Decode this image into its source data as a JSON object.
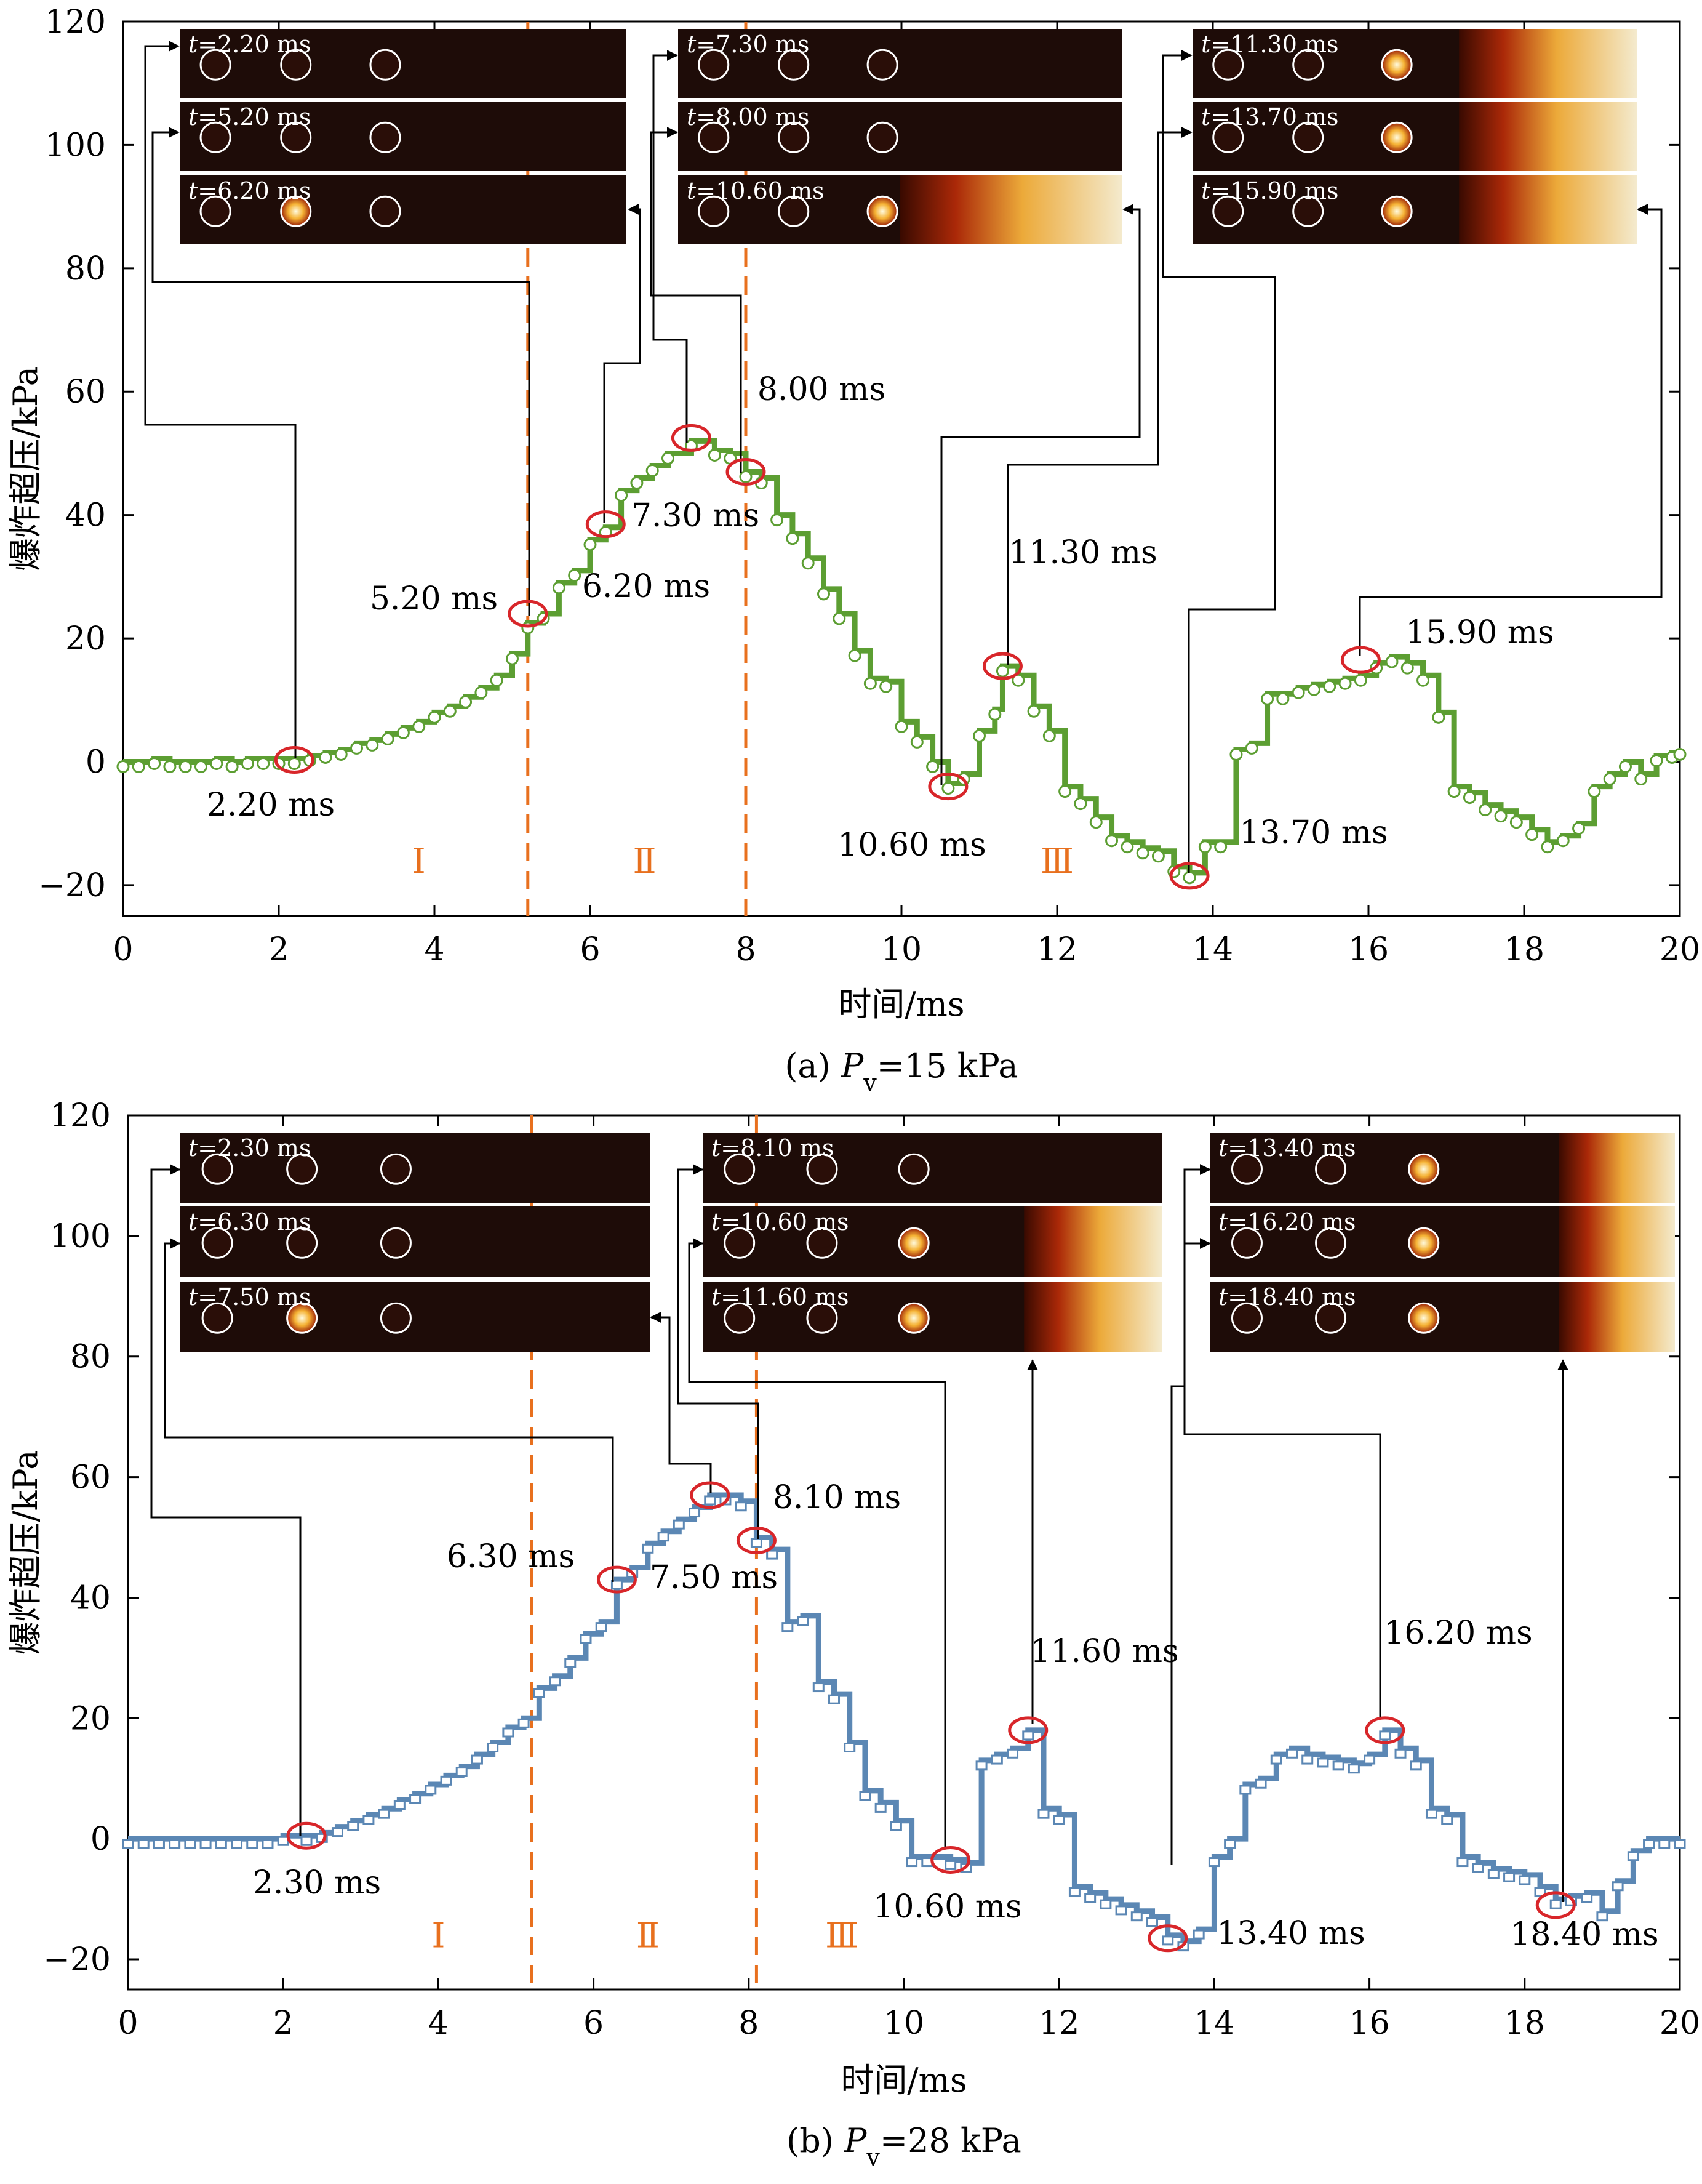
{
  "charts": [
    {
      "id": "a",
      "caption_prefix": "(a) ",
      "caption_var": "P",
      "caption_sub": "v",
      "caption_value": "=15 kPa",
      "ylabel": "爆炸超压/kPa",
      "xlabel": "时间/ms",
      "series_color": "#5c9e32",
      "marker": "circle"
    },
    {
      "id": "b",
      "caption_prefix": "(b) ",
      "caption_var": "P",
      "caption_sub": "v",
      "caption_value": "=28 kPa",
      "ylabel": "爆炸超压/kPa",
      "xlabel": "时间/ms",
      "series_color": "#5b87b4",
      "marker": "square"
    }
  ],
  "chart_data": [
    {
      "type": "line",
      "title": "(a) Pv=15 kPa",
      "xlabel": "时间/ms",
      "ylabel": "爆炸超压/kPa",
      "xlim": [
        0,
        20
      ],
      "ylim": [
        -25,
        120
      ],
      "xticks": [
        0,
        2,
        4,
        6,
        8,
        10,
        12,
        14,
        16,
        18,
        20
      ],
      "yticks": [
        -20,
        0,
        20,
        40,
        60,
        80,
        100,
        120
      ],
      "ytick_labels": [
        "−20",
        "0",
        "20",
        "40",
        "60",
        "80",
        "100",
        "120"
      ],
      "phase_lines": [
        5.2,
        8.0
      ],
      "phase_labels": [
        {
          "text": "Ⅰ",
          "x": 3.8
        },
        {
          "text": "Ⅱ",
          "x": 6.7
        },
        {
          "text": "Ⅲ",
          "x": 12.0
        }
      ],
      "x": [
        0,
        0.2,
        0.4,
        0.6,
        0.8,
        1.0,
        1.2,
        1.4,
        1.6,
        1.8,
        2.0,
        2.2,
        2.4,
        2.6,
        2.8,
        3.0,
        3.2,
        3.4,
        3.6,
        3.8,
        4.0,
        4.2,
        4.4,
        4.6,
        4.8,
        5.0,
        5.2,
        5.4,
        5.6,
        5.8,
        6.0,
        6.2,
        6.4,
        6.6,
        6.8,
        7.0,
        7.3,
        7.6,
        7.8,
        8.0,
        8.2,
        8.4,
        8.6,
        8.8,
        9.0,
        9.2,
        9.4,
        9.6,
        9.8,
        10.0,
        10.2,
        10.4,
        10.6,
        10.8,
        11.0,
        11.2,
        11.3,
        11.5,
        11.7,
        11.9,
        12.1,
        12.3,
        12.5,
        12.7,
        12.9,
        13.1,
        13.3,
        13.5,
        13.7,
        13.9,
        14.1,
        14.3,
        14.5,
        14.7,
        14.9,
        15.1,
        15.3,
        15.5,
        15.7,
        15.9,
        16.1,
        16.3,
        16.5,
        16.7,
        16.9,
        17.1,
        17.3,
        17.5,
        17.7,
        17.9,
        18.1,
        18.3,
        18.5,
        18.7,
        18.9,
        19.1,
        19.3,
        19.5,
        19.7,
        19.9,
        20.0
      ],
      "series": [
        {
          "name": "Pv=15 kPa",
          "values": [
            0,
            0,
            0.5,
            0,
            0,
            0,
            0.5,
            0,
            0.5,
            0.5,
            0.5,
            0.5,
            1,
            1.5,
            2,
            3,
            3.5,
            4.5,
            5.5,
            6.5,
            8,
            9,
            10.5,
            12,
            14,
            17.5,
            22.5,
            24,
            29,
            31,
            36,
            38,
            44,
            46,
            48,
            50,
            52,
            50.5,
            50,
            47,
            46,
            40,
            37,
            33,
            28,
            24,
            18,
            13.5,
            13,
            6.5,
            4,
            0,
            -3.5,
            -2,
            5,
            8.5,
            15.5,
            14,
            9,
            5,
            -4,
            -6,
            -9,
            -12,
            -13,
            -14,
            -14.5,
            -17,
            -18,
            -13,
            -13,
            2,
            3,
            11,
            11,
            12,
            12.5,
            13,
            13.5,
            14,
            16,
            17,
            16,
            14,
            8,
            -4,
            -5,
            -7,
            -8,
            -9,
            -11,
            -13,
            -12,
            -10,
            -4,
            -2,
            0,
            -2,
            1,
            1.5,
            2
          ]
        }
      ],
      "highlighted_points": [
        {
          "time": 2.2,
          "value": 0.3,
          "label": "2.20 ms"
        },
        {
          "time": 5.2,
          "value": 24,
          "label": "5.20 ms"
        },
        {
          "time": 6.2,
          "value": 38.5,
          "label": "6.20 ms"
        },
        {
          "time": 7.3,
          "value": 52.5,
          "label": "7.30 ms"
        },
        {
          "time": 8.0,
          "value": 47,
          "label": "8.00 ms"
        },
        {
          "time": 10.6,
          "value": -4,
          "label": "10.60 ms"
        },
        {
          "time": 11.3,
          "value": 15.5,
          "label": "11.30 ms"
        },
        {
          "time": 13.7,
          "value": -18.5,
          "label": "13.70 ms"
        },
        {
          "time": 15.9,
          "value": 16.5,
          "label": "15.90 ms"
        }
      ],
      "frames": [
        {
          "group": 1,
          "label_var": "t",
          "label_value": "=2.20 ms",
          "flame": 0
        },
        {
          "group": 1,
          "label_var": "t",
          "label_value": "=5.20 ms",
          "flame": 0
        },
        {
          "group": 1,
          "label_var": "t",
          "label_value": "=6.20 ms",
          "flame": 0
        },
        {
          "group": 2,
          "label_var": "t",
          "label_value": "=7.30 ms",
          "flame": 0
        },
        {
          "group": 2,
          "label_var": "t",
          "label_value": "=8.00 ms",
          "flame": 0
        },
        {
          "group": 2,
          "label_var": "t",
          "label_value": "=10.60 ms",
          "flame": 0.5
        },
        {
          "group": 3,
          "label_var": "t",
          "label_value": "=11.30 ms",
          "flame": 0.6
        },
        {
          "group": 3,
          "label_var": "t",
          "label_value": "=13.70 ms",
          "flame": 0.6
        },
        {
          "group": 3,
          "label_var": "t",
          "label_value": "=15.90 ms",
          "flame": 0.6
        }
      ]
    },
    {
      "type": "line",
      "title": "(b) Pv=28 kPa",
      "xlabel": "时间/ms",
      "ylabel": "爆炸超压/kPa",
      "xlim": [
        0,
        20
      ],
      "ylim": [
        -25,
        120
      ],
      "xticks": [
        0,
        2,
        4,
        6,
        8,
        10,
        12,
        14,
        16,
        18,
        20
      ],
      "yticks": [
        -20,
        0,
        20,
        40,
        60,
        80,
        100,
        120
      ],
      "ytick_labels": [
        "−20",
        "0",
        "20",
        "40",
        "60",
        "80",
        "100",
        "120"
      ],
      "phase_lines": [
        5.2,
        8.1
      ],
      "phase_labels": [
        {
          "text": "Ⅰ",
          "x": 4.0
        },
        {
          "text": "Ⅱ",
          "x": 6.7
        },
        {
          "text": "Ⅲ",
          "x": 9.2
        }
      ],
      "x": [
        0,
        0.2,
        0.4,
        0.6,
        0.8,
        1.0,
        1.2,
        1.4,
        1.6,
        1.8,
        2.0,
        2.3,
        2.5,
        2.7,
        2.9,
        3.1,
        3.3,
        3.5,
        3.7,
        3.9,
        4.1,
        4.3,
        4.5,
        4.7,
        4.9,
        5.1,
        5.3,
        5.5,
        5.7,
        5.9,
        6.1,
        6.3,
        6.5,
        6.7,
        6.9,
        7.1,
        7.3,
        7.5,
        7.7,
        7.9,
        8.1,
        8.3,
        8.5,
        8.7,
        8.9,
        9.1,
        9.3,
        9.5,
        9.7,
        9.9,
        10.1,
        10.3,
        10.6,
        10.8,
        11.0,
        11.2,
        11.4,
        11.6,
        11.8,
        12.0,
        12.2,
        12.4,
        12.6,
        12.8,
        13.0,
        13.2,
        13.4,
        13.6,
        13.8,
        14.0,
        14.2,
        14.4,
        14.6,
        14.8,
        15.0,
        15.2,
        15.4,
        15.6,
        15.8,
        16.0,
        16.2,
        16.4,
        16.6,
        16.8,
        17.0,
        17.2,
        17.4,
        17.6,
        17.8,
        18.0,
        18.2,
        18.4,
        18.6,
        18.8,
        19.0,
        19.2,
        19.4,
        19.6,
        19.8,
        20.0
      ],
      "series": [
        {
          "name": "Pv=28 kPa",
          "values": [
            0,
            0,
            0,
            0,
            0,
            0,
            0,
            0,
            0,
            0,
            0.5,
            0.5,
            1,
            2,
            3,
            4,
            5,
            6.5,
            7.5,
            9,
            10.5,
            12,
            14,
            16,
            18.5,
            20,
            25,
            27,
            30,
            34,
            36,
            43,
            45,
            49,
            51,
            53,
            55,
            57,
            57,
            56,
            50,
            48,
            36,
            37,
            26,
            24,
            16,
            8,
            6,
            3,
            -3,
            -3,
            -3.5,
            -4,
            13,
            14,
            15,
            18,
            5,
            4,
            -8,
            -9,
            -10,
            -11,
            -12,
            -13,
            -16,
            -17,
            -15,
            -3,
            0,
            9,
            10,
            14,
            15,
            14,
            13.5,
            13,
            12.5,
            14,
            18,
            15,
            13,
            5,
            4,
            -3,
            -4,
            -5,
            -5.5,
            -6,
            -8,
            -10,
            -9.5,
            -9,
            -12,
            -7,
            -2,
            0,
            0,
            0
          ]
        }
      ],
      "highlighted_points": [
        {
          "time": 2.3,
          "value": 0.5,
          "label": "2.30 ms"
        },
        {
          "time": 6.3,
          "value": 43,
          "label": "6.30 ms"
        },
        {
          "time": 7.5,
          "value": 57,
          "label": "7.50 ms"
        },
        {
          "time": 8.1,
          "value": 49.5,
          "label": "8.10 ms"
        },
        {
          "time": 10.6,
          "value": -3.5,
          "label": "10.60 ms"
        },
        {
          "time": 11.6,
          "value": 18,
          "label": "11.60 ms"
        },
        {
          "time": 13.4,
          "value": -16.5,
          "label": "13.40 ms"
        },
        {
          "time": 16.2,
          "value": 18,
          "label": "16.20 ms"
        },
        {
          "time": 18.4,
          "value": -11,
          "label": "18.40 ms"
        }
      ],
      "frames": [
        {
          "group": 1,
          "label_var": "t",
          "label_value": "=2.30 ms",
          "flame": 0
        },
        {
          "group": 1,
          "label_var": "t",
          "label_value": "=6.30 ms",
          "flame": 0
        },
        {
          "group": 1,
          "label_var": "t",
          "label_value": "=7.50 ms",
          "flame": 0
        },
        {
          "group": 2,
          "label_var": "t",
          "label_value": "=8.10 ms",
          "flame": 0
        },
        {
          "group": 2,
          "label_var": "t",
          "label_value": "=10.60 ms",
          "flame": 0.7
        },
        {
          "group": 2,
          "label_var": "t",
          "label_value": "=11.60 ms",
          "flame": 0.7
        },
        {
          "group": 3,
          "label_var": "t",
          "label_value": "=13.40 ms",
          "flame": 0.75
        },
        {
          "group": 3,
          "label_var": "t",
          "label_value": "=16.20 ms",
          "flame": 0.75
        },
        {
          "group": 3,
          "label_var": "t",
          "label_value": "=18.40 ms",
          "flame": 0.75
        }
      ]
    }
  ]
}
